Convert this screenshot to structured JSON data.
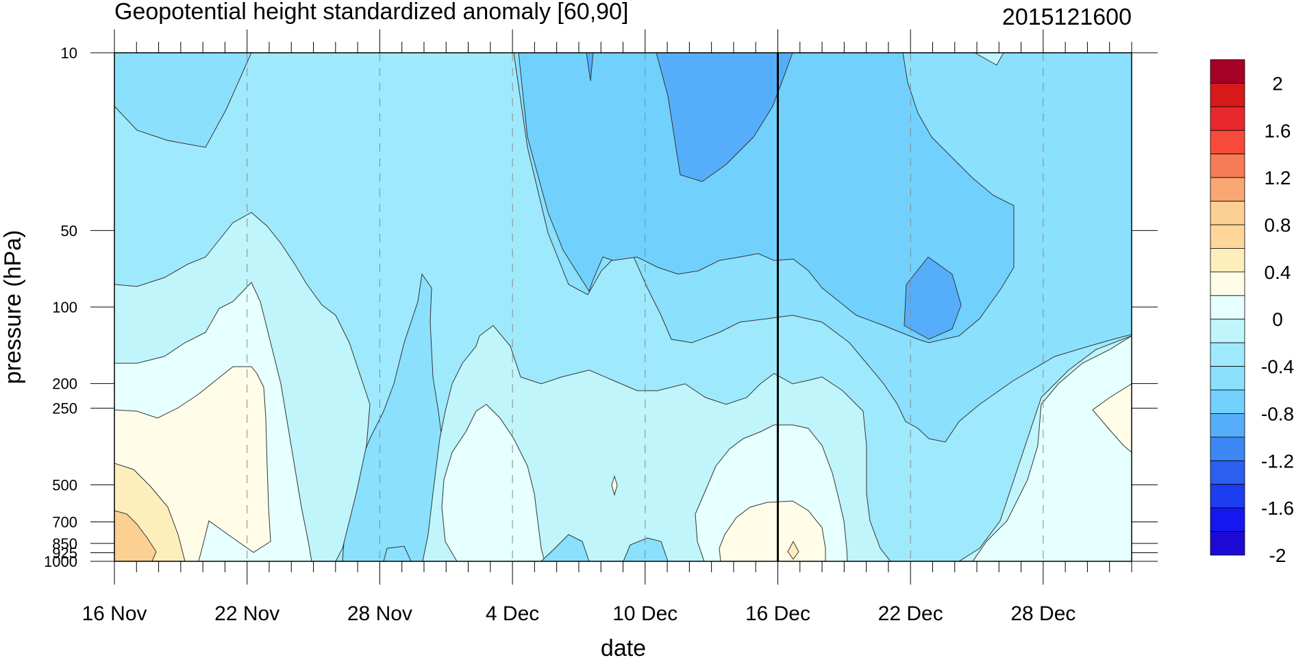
{
  "chart_data": {
    "type": "heatmap",
    "title": "Geopotential height standardized anomaly [60,90]",
    "right_title": "2015121600",
    "xlabel": "date",
    "ylabel": "pressure (hPa)",
    "x_ticks": [
      "16 Nov",
      "22 Nov",
      "28 Nov",
      "4 Dec",
      "10 Dec",
      "16 Dec",
      "22 Dec",
      "28 Dec"
    ],
    "y_ticks": [
      "10",
      "50",
      "100",
      "200",
      "250",
      "500",
      "700",
      "850",
      "925",
      "1000"
    ],
    "y_scale": "log",
    "ylim": [
      1000,
      10
    ],
    "xlim": [
      "16 Nov",
      "1 Jan"
    ],
    "reference_line": "16 Dec",
    "colorbar": {
      "labels": [
        "2",
        "1.6",
        "1.2",
        "0.8",
        "0.4",
        "0",
        "-0.4",
        "-0.8",
        "-1.2",
        "-1.6",
        "-2"
      ],
      "colors": [
        "#a50026",
        "#d7191c",
        "#e8282c",
        "#f64a3a",
        "#f67c55",
        "#fba774",
        "#fcd092",
        "#fed69a",
        "#fdeebb",
        "#fffde8",
        "#e6ffff",
        "#bff5fb",
        "#9fe9fd",
        "#8ae0fd",
        "#71d1fc",
        "#56aefb",
        "#3d87f5",
        "#2a5ff0",
        "#1c3df0",
        "#1616f0",
        "#1d0ad4"
      ]
    },
    "levels": [
      -1.2,
      -1.0,
      -0.8,
      -0.6,
      -0.4,
      -0.2,
      0,
      0.2,
      0.4
    ]
  }
}
